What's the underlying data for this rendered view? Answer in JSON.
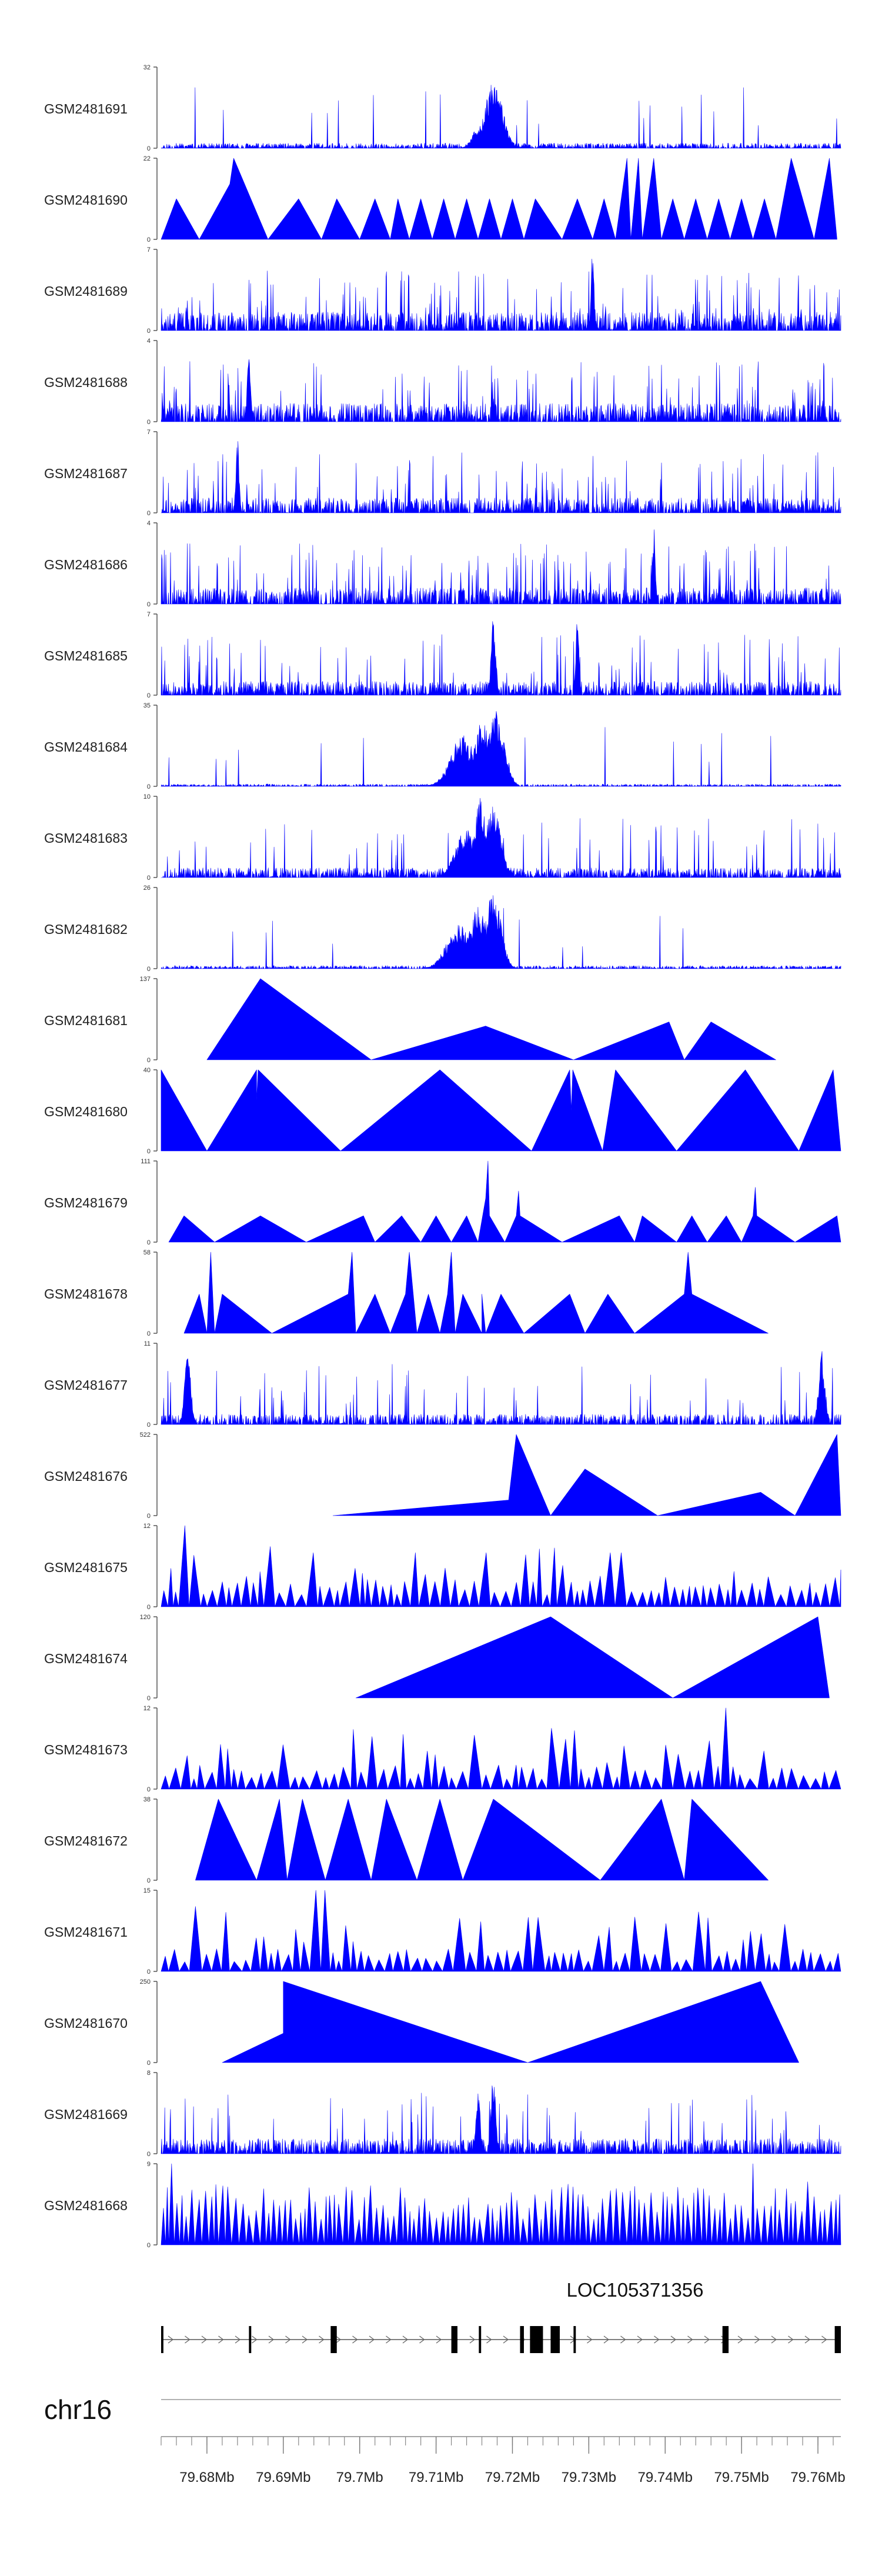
{
  "chart_data": {
    "type": "area",
    "title": "",
    "color": "#0000FF",
    "chromosome": "chr16",
    "xlim": [
      79.674,
      79.763
    ],
    "xticks": [
      {
        "value": 79.68,
        "label": "79.68Mb"
      },
      {
        "value": 79.69,
        "label": "79.69Mb"
      },
      {
        "value": 79.7,
        "label": "79.7Mb"
      },
      {
        "value": 79.71,
        "label": "79.71Mb"
      },
      {
        "value": 79.72,
        "label": "79.72Mb"
      },
      {
        "value": 79.73,
        "label": "79.73Mb"
      },
      {
        "value": 79.74,
        "label": "79.74Mb"
      },
      {
        "value": 79.75,
        "label": "79.75Mb"
      },
      {
        "value": 79.76,
        "label": "79.76Mb"
      }
    ],
    "gene": {
      "name": "LOC105371356",
      "start": 79.674,
      "end": 79.763,
      "strand": "+",
      "exons": [
        [
          79.674,
          79.6743
        ],
        [
          79.6855,
          79.6858
        ],
        [
          79.6962,
          79.697
        ],
        [
          79.712,
          79.7128
        ],
        [
          79.7156,
          79.7159
        ],
        [
          79.721,
          79.7215
        ],
        [
          79.7223,
          79.724
        ],
        [
          79.725,
          79.7262
        ],
        [
          79.728,
          79.7283
        ],
        [
          79.7475,
          79.7483
        ],
        [
          79.7622,
          79.763
        ]
      ]
    },
    "series": [
      {
        "name": "GSM2481691",
        "ymax": 32,
        "mode": "noise",
        "base": 2.0,
        "spike": 0.12,
        "seed": 11,
        "peaks": [
          [
            79.7175,
            0.0012,
            26
          ],
          [
            79.7155,
            0.0008,
            8
          ]
        ]
      },
      {
        "name": "GSM2481690",
        "ymax": 22,
        "mode": "tri",
        "seed": 23,
        "knots": [
          [
            79.674,
            0
          ],
          [
            79.676,
            11
          ],
          [
            79.679,
            0
          ],
          [
            79.683,
            15
          ],
          [
            79.6835,
            22
          ],
          [
            79.688,
            0
          ],
          [
            79.692,
            11
          ],
          [
            79.695,
            0
          ],
          [
            79.697,
            11
          ],
          [
            79.7,
            0
          ],
          [
            79.702,
            11
          ],
          [
            79.704,
            0
          ],
          [
            79.705,
            11
          ],
          [
            79.7065,
            0
          ],
          [
            79.708,
            11
          ],
          [
            79.7095,
            0
          ],
          [
            79.711,
            11
          ],
          [
            79.7125,
            0
          ],
          [
            79.714,
            11
          ],
          [
            79.7155,
            0
          ],
          [
            79.717,
            11
          ],
          [
            79.7185,
            0
          ],
          [
            79.72,
            11
          ],
          [
            79.7215,
            0
          ],
          [
            79.723,
            11
          ],
          [
            79.7265,
            0
          ],
          [
            79.7285,
            11
          ],
          [
            79.7305,
            0
          ],
          [
            79.732,
            11
          ],
          [
            79.7335,
            0
          ],
          [
            79.735,
            22
          ],
          [
            79.7355,
            0
          ],
          [
            79.7365,
            22
          ],
          [
            79.737,
            0
          ],
          [
            79.7385,
            22
          ],
          [
            79.7395,
            0
          ],
          [
            79.741,
            11
          ],
          [
            79.7425,
            0
          ],
          [
            79.744,
            11
          ],
          [
            79.7455,
            0
          ],
          [
            79.747,
            11
          ],
          [
            79.7485,
            0
          ],
          [
            79.75,
            11
          ],
          [
            79.7515,
            0
          ],
          [
            79.753,
            11
          ],
          [
            79.7545,
            0
          ],
          [
            79.7565,
            22
          ],
          [
            79.7595,
            0
          ],
          [
            79.7615,
            22
          ],
          [
            79.7625,
            0
          ]
        ]
      },
      {
        "name": "GSM2481689",
        "ymax": 7,
        "mode": "noise",
        "base": 1.6,
        "spike": 0.55,
        "seed": 37,
        "peaks": [
          [
            79.7305,
            0.0002,
            7
          ]
        ]
      },
      {
        "name": "GSM2481688",
        "ymax": 4,
        "mode": "noise",
        "base": 0.9,
        "spike": 0.55,
        "seed": 41,
        "peaks": [
          [
            79.6855,
            0.0002,
            4
          ]
        ]
      },
      {
        "name": "GSM2481687",
        "ymax": 7,
        "mode": "noise",
        "base": 1.3,
        "spike": 0.5,
        "seed": 53,
        "peaks": [
          [
            79.684,
            0.0002,
            7
          ]
        ]
      },
      {
        "name": "GSM2481686",
        "ymax": 4,
        "mode": "noise",
        "base": 0.8,
        "spike": 0.55,
        "seed": 67,
        "peaks": [
          [
            79.7385,
            0.0002,
            4
          ]
        ]
      },
      {
        "name": "GSM2481685",
        "ymax": 7,
        "mode": "noise",
        "base": 1.2,
        "spike": 0.5,
        "seed": 79,
        "peaks": [
          [
            79.7175,
            0.0003,
            7
          ],
          [
            79.7285,
            0.0002,
            7
          ]
        ]
      },
      {
        "name": "GSM2481684",
        "ymax": 35,
        "mode": "noise",
        "base": 1.0,
        "spike": 0.1,
        "seed": 83,
        "peaks": [
          [
            79.7135,
            0.0016,
            22
          ],
          [
            79.716,
            0.0012,
            28
          ],
          [
            79.7178,
            0.0011,
            35
          ]
        ]
      },
      {
        "name": "GSM2481683",
        "ymax": 10,
        "mode": "noise",
        "base": 1.2,
        "spike": 0.35,
        "seed": 97,
        "peaks": [
          [
            79.714,
            0.0014,
            6
          ],
          [
            79.7158,
            0.0008,
            10
          ],
          [
            79.7175,
            0.001,
            9
          ]
        ]
      },
      {
        "name": "GSM2481682",
        "ymax": 26,
        "mode": "noise",
        "base": 1.0,
        "spike": 0.12,
        "seed": 101,
        "peaks": [
          [
            79.713,
            0.0016,
            14
          ],
          [
            79.7155,
            0.0012,
            20
          ],
          [
            79.7175,
            0.001,
            26
          ]
        ]
      },
      {
        "name": "GSM2481681",
        "ymax": 137,
        "mode": "tri",
        "seed": 5,
        "knots": [
          [
            79.68,
            0
          ],
          [
            79.687,
            137
          ],
          [
            79.7015,
            0
          ],
          [
            79.7165,
            57
          ],
          [
            79.728,
            0
          ],
          [
            79.7405,
            64
          ],
          [
            79.7425,
            0
          ],
          [
            79.746,
            64
          ],
          [
            79.7545,
            0
          ]
        ]
      },
      {
        "name": "GSM2481680",
        "ymax": 40,
        "mode": "tri",
        "seed": 7,
        "knots": [
          [
            79.674,
            40
          ],
          [
            79.68,
            0
          ],
          [
            79.6865,
            40
          ],
          [
            79.6865,
            25
          ],
          [
            79.6867,
            40
          ],
          [
            79.6975,
            0
          ],
          [
            79.7105,
            40
          ],
          [
            79.7225,
            0
          ],
          [
            79.7275,
            40
          ],
          [
            79.7277,
            20
          ],
          [
            79.7279,
            40
          ],
          [
            79.7318,
            0
          ],
          [
            79.7335,
            40
          ],
          [
            79.7415,
            0
          ],
          [
            79.7505,
            40
          ],
          [
            79.7575,
            0
          ],
          [
            79.762,
            40
          ],
          [
            79.763,
            0
          ]
        ]
      },
      {
        "name": "GSM2481679",
        "ymax": 111,
        "mode": "tri",
        "seed": 13,
        "knots": [
          [
            79.675,
            0
          ],
          [
            79.677,
            36
          ],
          [
            79.681,
            0
          ],
          [
            79.687,
            36
          ],
          [
            79.693,
            0
          ],
          [
            79.7005,
            36
          ],
          [
            79.702,
            0
          ],
          [
            79.7055,
            36
          ],
          [
            79.708,
            0
          ],
          [
            79.71,
            36
          ],
          [
            79.712,
            0
          ],
          [
            79.714,
            36
          ],
          [
            79.7155,
            0
          ],
          [
            79.7165,
            60
          ],
          [
            79.7168,
            111
          ],
          [
            79.717,
            36
          ],
          [
            79.719,
            0
          ],
          [
            79.7205,
            36
          ],
          [
            79.7208,
            70
          ],
          [
            79.721,
            36
          ],
          [
            79.7265,
            0
          ],
          [
            79.734,
            36
          ],
          [
            79.736,
            0
          ],
          [
            79.737,
            36
          ],
          [
            79.7415,
            0
          ],
          [
            79.7435,
            36
          ],
          [
            79.7455,
            0
          ],
          [
            79.748,
            36
          ],
          [
            79.75,
            0
          ],
          [
            79.7515,
            36
          ],
          [
            79.7518,
            75
          ],
          [
            79.752,
            36
          ],
          [
            79.757,
            0
          ],
          [
            79.7625,
            36
          ],
          [
            79.763,
            0
          ]
        ]
      },
      {
        "name": "GSM2481678",
        "ymax": 58,
        "mode": "tri",
        "seed": 17,
        "knots": [
          [
            79.677,
            0
          ],
          [
            79.679,
            28
          ],
          [
            79.68,
            0
          ],
          [
            79.6805,
            58
          ],
          [
            79.681,
            0
          ],
          [
            79.682,
            28
          ],
          [
            79.6885,
            0
          ],
          [
            79.6985,
            28
          ],
          [
            79.699,
            58
          ],
          [
            79.6995,
            0
          ],
          [
            79.702,
            28
          ],
          [
            79.704,
            0
          ],
          [
            79.706,
            28
          ],
          [
            79.7065,
            58
          ],
          [
            79.7075,
            0
          ],
          [
            79.709,
            28
          ],
          [
            79.7105,
            0
          ],
          [
            79.7115,
            28
          ],
          [
            79.712,
            58
          ],
          [
            79.7125,
            0
          ],
          [
            79.7135,
            28
          ],
          [
            79.716,
            0
          ],
          [
            79.716,
            28
          ],
          [
            79.7165,
            0
          ],
          [
            79.7185,
            28
          ],
          [
            79.7215,
            0
          ],
          [
            79.7275,
            28
          ],
          [
            79.7295,
            0
          ],
          [
            79.7325,
            28
          ],
          [
            79.736,
            0
          ],
          [
            79.7425,
            28
          ],
          [
            79.743,
            58
          ],
          [
            79.7435,
            28
          ],
          [
            79.7535,
            0
          ]
        ]
      },
      {
        "name": "GSM2481677",
        "ymax": 11,
        "mode": "noise",
        "base": 1.4,
        "spike": 0.3,
        "seed": 29,
        "peaks": [
          [
            79.6775,
            0.0004,
            11
          ],
          [
            79.7605,
            0.0004,
            11
          ]
        ]
      },
      {
        "name": "GSM2481676",
        "ymax": 522,
        "mode": "tri",
        "seed": 31,
        "knots": [
          [
            79.6965,
            0
          ],
          [
            79.7195,
            100
          ],
          [
            79.7205,
            522
          ],
          [
            79.725,
            0
          ],
          [
            79.7295,
            300
          ],
          [
            79.739,
            0
          ],
          [
            79.7525,
            150
          ],
          [
            79.757,
            0
          ],
          [
            79.7625,
            522
          ],
          [
            79.763,
            0
          ]
        ]
      },
      {
        "name": "GSM2481675",
        "ymax": 12,
        "mode": "tri",
        "seed": 43,
        "knots": "auto",
        "period": 0.0011,
        "base": 3.5,
        "spike": 0.25,
        "peaks": [
          [
            79.6768,
            12
          ],
          [
            79.6935,
            8
          ],
          [
            79.707,
            8
          ],
          [
            79.716,
            8
          ],
          [
            79.7335,
            8
          ]
        ]
      },
      {
        "name": "GSM2481674",
        "ymax": 120,
        "mode": "tri",
        "seed": 47,
        "knots": [
          [
            79.6995,
            0
          ],
          [
            79.725,
            120
          ],
          [
            79.741,
            0
          ],
          [
            79.76,
            120
          ],
          [
            79.7615,
            0
          ]
        ]
      },
      {
        "name": "GSM2481673",
        "ymax": 12,
        "mode": "tri",
        "seed": 59,
        "knots": "auto",
        "period": 0.0013,
        "base": 3.0,
        "spike": 0.25,
        "peaks": [
          [
            79.7475,
            12
          ],
          [
            79.7255,
            9
          ]
        ]
      },
      {
        "name": "GSM2481672",
        "ymax": 38,
        "mode": "tri",
        "seed": 61,
        "knots": [
          [
            79.6785,
            0
          ],
          [
            79.6815,
            38
          ],
          [
            79.6865,
            0
          ],
          [
            79.6895,
            38
          ],
          [
            79.6905,
            0
          ],
          [
            79.6925,
            38
          ],
          [
            79.6955,
            0
          ],
          [
            79.6985,
            38
          ],
          [
            79.7015,
            0
          ],
          [
            79.7035,
            38
          ],
          [
            79.7075,
            0
          ],
          [
            79.7105,
            38
          ],
          [
            79.7135,
            0
          ],
          [
            79.7175,
            38
          ],
          [
            79.7315,
            0
          ],
          [
            79.7395,
            38
          ],
          [
            79.7425,
            0
          ],
          [
            79.7435,
            38
          ],
          [
            79.7535,
            0
          ]
        ]
      },
      {
        "name": "GSM2481671",
        "ymax": 15,
        "mode": "tri",
        "seed": 71,
        "knots": "auto",
        "period": 0.0012,
        "base": 3.5,
        "spike": 0.25,
        "peaks": [
          [
            79.6785,
            12
          ],
          [
            79.695,
            15
          ],
          [
            79.7225,
            10
          ],
          [
            79.7445,
            11
          ]
        ]
      },
      {
        "name": "GSM2481670",
        "ymax": 250,
        "mode": "tri",
        "seed": 73,
        "knots": [
          [
            79.682,
            0
          ],
          [
            79.69,
            90
          ],
          [
            79.69,
            250
          ],
          [
            79.722,
            0
          ],
          [
            79.7525,
            250
          ],
          [
            79.7575,
            0
          ]
        ]
      },
      {
        "name": "GSM2481669",
        "ymax": 8,
        "mode": "noise",
        "base": 1.5,
        "spike": 0.3,
        "seed": 89,
        "peaks": [
          [
            79.7175,
            0.0003,
            8
          ],
          [
            79.7155,
            0.0003,
            6
          ]
        ]
      },
      {
        "name": "GSM2481668",
        "ymax": 9,
        "mode": "tri",
        "seed": 103,
        "knots": "auto",
        "period": 0.0007,
        "base": 5.5,
        "spike": 0.3,
        "peaks": [
          [
            79.6755,
            9
          ],
          [
            79.7515,
            9
          ],
          [
            79.7585,
            7
          ]
        ]
      }
    ]
  }
}
